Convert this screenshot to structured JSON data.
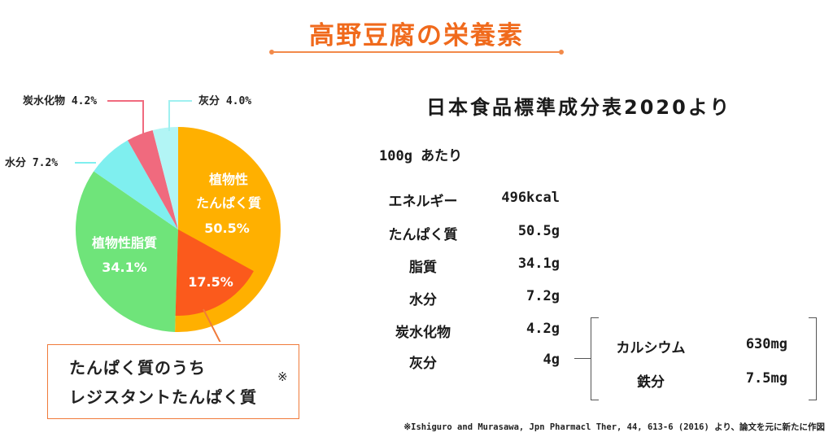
{
  "title": "高野豆腐の栄養素",
  "chart_data": {
    "type": "pie",
    "segments": [
      {
        "name": "植物性たんぱく質",
        "line1": "植物性",
        "line2": "たんぱく質",
        "value": 50.5,
        "label": "50.5%",
        "color": "#ffb000"
      },
      {
        "name": "植物性脂質",
        "line1": "植物性脂質",
        "value": 34.1,
        "label": "34.1%",
        "color": "#6fe47a"
      },
      {
        "name": "水分",
        "value": 7.2,
        "label": "水分 7.2%",
        "color": "#7fefef"
      },
      {
        "name": "炭水化物",
        "value": 4.2,
        "label": "炭水化物 4.2%",
        "color": "#f06a7e"
      },
      {
        "name": "灰分",
        "value": 4.0,
        "label": "灰分 4.0%",
        "color": "#b2f5f5"
      }
    ],
    "sub_segment": {
      "value": 17.5,
      "label": "17.5%",
      "color": "#fb5a1c",
      "parent": "植物性たんぱく質"
    }
  },
  "callout": {
    "line1": "たんぱく質のうち",
    "line2": "レジスタントたんぱく質",
    "note": "※"
  },
  "table": {
    "title": "日本食品標準成分表2020より",
    "per_unit": "100g あたり",
    "rows": [
      {
        "label": "エネルギー",
        "value": "496kcal"
      },
      {
        "label": "たんぱく質",
        "value": "50.5g"
      },
      {
        "label": "脂質",
        "value": "34.1g"
      },
      {
        "label": "水分",
        "value": "7.2g"
      },
      {
        "label": "炭水化物",
        "value": "4.2g"
      },
      {
        "label": "灰分",
        "value": "4g"
      }
    ],
    "minerals": [
      {
        "label": "カルシウム",
        "value": "630mg"
      },
      {
        "label": "鉄分",
        "value": "7.5mg"
      }
    ]
  },
  "source": "※Ishiguro and Murasawa, Jpn Pharmacl Ther, 44, 613-6 (2016) より、論文を元に新たに作図"
}
